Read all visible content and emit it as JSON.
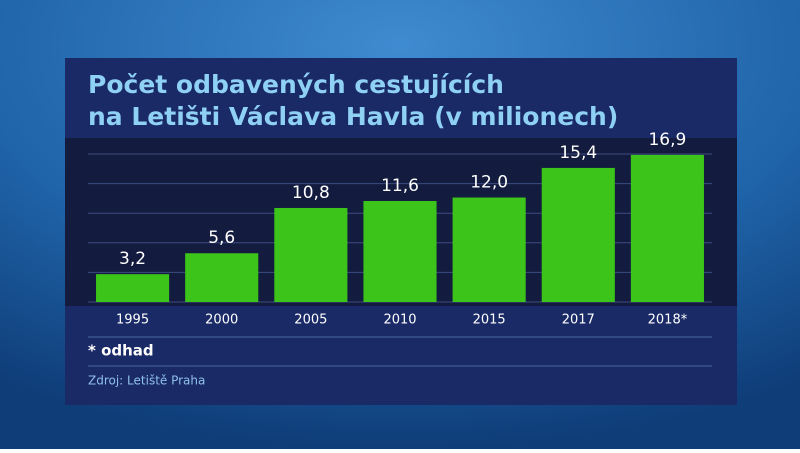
{
  "chart_data": {
    "type": "bar",
    "title": [
      "Počet odbavených cestujících",
      "na Letišti Václava Havla (v milionech)"
    ],
    "categories": [
      "1995",
      "2000",
      "2005",
      "2010",
      "2015",
      "2017",
      "2018*"
    ],
    "values": [
      3.2,
      5.6,
      10.8,
      11.6,
      12.0,
      15.4,
      16.9
    ],
    "value_labels": [
      "3,2",
      "5,6",
      "10,8",
      "11,6",
      "12,0",
      "15,4",
      "16,9"
    ],
    "color": "#3cc41a",
    "ylim": [
      0,
      17
    ],
    "yticks": [
      0,
      3.4,
      6.8,
      10.2,
      13.6,
      17
    ],
    "grid": true,
    "note": "* odhad",
    "source": "Zdroj: Letiště Praha"
  }
}
